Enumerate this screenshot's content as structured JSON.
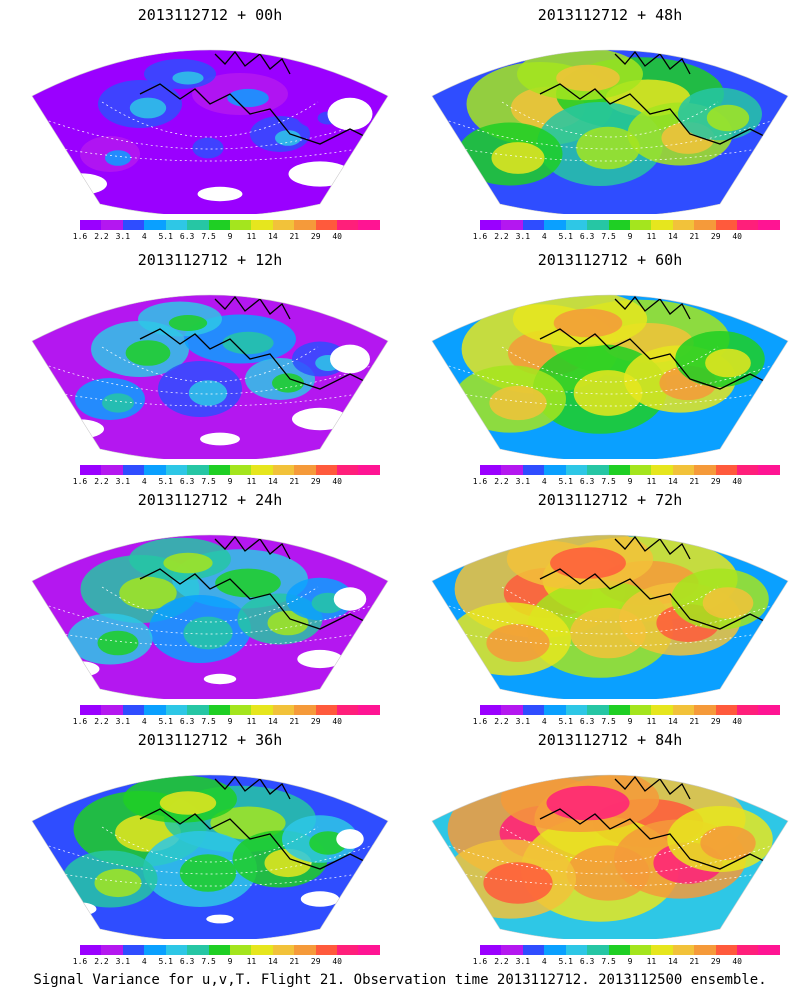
{
  "figure": {
    "caption": "Signal Variance for u,v,T. Flight 21. Observation time 2013112712. 2013112500 ensemble."
  },
  "colorbar": {
    "labels": [
      "1.6",
      "2.2",
      "3.1",
      "4",
      "5.1",
      "6.3",
      "7.5",
      "9",
      "11",
      "14",
      "21",
      "29",
      "40"
    ],
    "colors": [
      "#9a00ff",
      "#b417f0",
      "#2f4dff",
      "#0aa0ff",
      "#2ec7e6",
      "#26c6a4",
      "#1fcf24",
      "#a4e51e",
      "#e6e61e",
      "#f2c23a",
      "#f59a3a",
      "#ff5a3c",
      "#ff1f7a",
      "#ff1493"
    ]
  },
  "panels": [
    {
      "title": "2013112712 + 00h",
      "level": 0.1
    },
    {
      "title": "2013112712 + 48h",
      "level": 0.55
    },
    {
      "title": "2013112712 + 12h",
      "level": 0.2
    },
    {
      "title": "2013112712 + 60h",
      "level": 0.62
    },
    {
      "title": "2013112712 + 24h",
      "level": 0.35
    },
    {
      "title": "2013112712 + 72h",
      "level": 0.72
    },
    {
      "title": "2013112712 + 36h",
      "level": 0.45
    },
    {
      "title": "2013112712 + 84h",
      "level": 0.82
    }
  ]
}
